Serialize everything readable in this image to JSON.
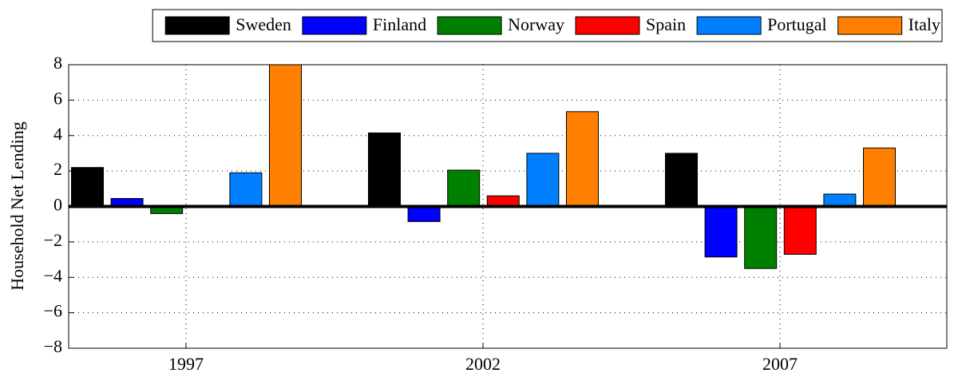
{
  "chart_data": {
    "type": "bar",
    "y_label": "Household Net Lending",
    "categories": [
      "1997",
      "2002",
      "2007"
    ],
    "series": [
      {
        "name": "Sweden",
        "color": "#000000",
        "values": [
          2.2,
          4.15,
          3.0
        ]
      },
      {
        "name": "Finland",
        "color": "#0000ff",
        "values": [
          0.45,
          -0.85,
          -2.85
        ]
      },
      {
        "name": "Norway",
        "color": "#008000",
        "values": [
          -0.4,
          2.05,
          -3.5
        ]
      },
      {
        "name": "Spain",
        "color": "#ff0000",
        "values": [
          0,
          0.6,
          -2.7
        ]
      },
      {
        "name": "Portugal",
        "color": "#0080ff",
        "values": [
          1.9,
          3.0,
          0.7
        ]
      },
      {
        "name": "Italy",
        "color": "#ff8000",
        "values": [
          8,
          5.35,
          3.3
        ]
      }
    ],
    "ylim": [
      -8,
      8
    ],
    "yticks": [
      {
        "value": -8,
        "label": "−8"
      },
      {
        "value": -6,
        "label": "−6"
      },
      {
        "value": -4,
        "label": "−4"
      },
      {
        "value": -2,
        "label": "−2"
      },
      0,
      2,
      4,
      6,
      8
    ],
    "grid": true,
    "legend": "top"
  }
}
